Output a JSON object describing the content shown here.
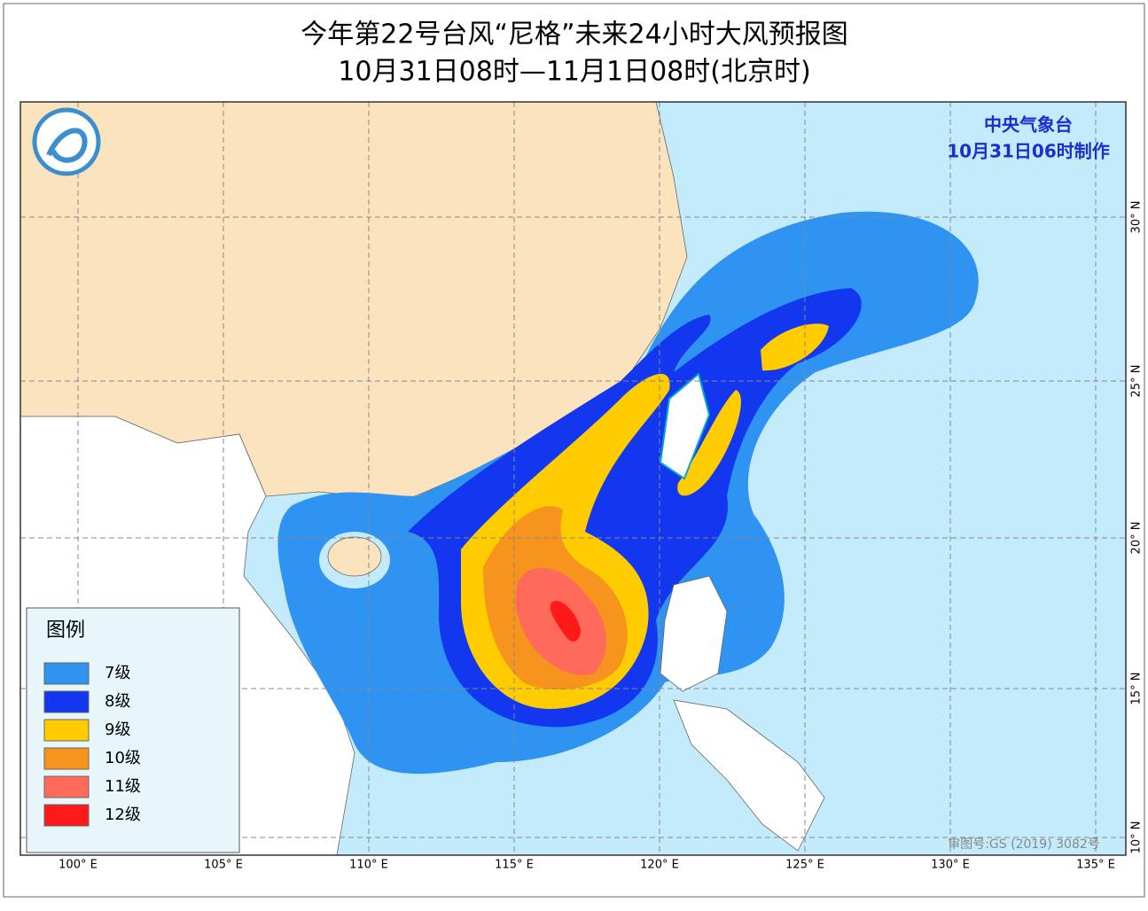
{
  "title": {
    "line1": "今年第22号台风“尼格”未来24小时大风预报图",
    "line2": "10月31日08时—11月1日08时(北京时)"
  },
  "agency": {
    "name": "中央气象台",
    "issued": "10月31日06时制作"
  },
  "legend": {
    "title": "图例",
    "items": [
      {
        "label": "7级",
        "color": "#2f93f2"
      },
      {
        "label": "8级",
        "color": "#1237ee"
      },
      {
        "label": "9级",
        "color": "#ffcc00"
      },
      {
        "label": "10级",
        "color": "#f7941d"
      },
      {
        "label": "11级",
        "color": "#ff6a5a"
      },
      {
        "label": "12级",
        "color": "#ff1a1a"
      }
    ]
  },
  "map": {
    "lon_labels": [
      "100° E",
      "105° E",
      "110° E",
      "115° E",
      "120° E",
      "125° E",
      "130° E",
      "135° E"
    ],
    "lat_labels": [
      "30° N",
      "25° N",
      "20° N",
      "15° N",
      "10° N"
    ],
    "approval": "审图号:GS (2019) 3082号"
  }
}
